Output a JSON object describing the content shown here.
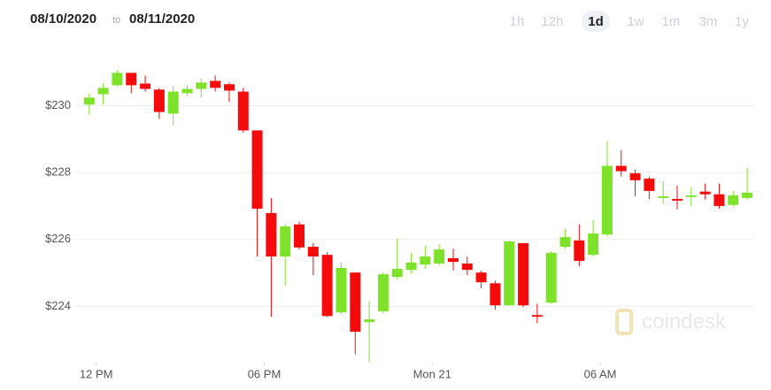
{
  "chart_data": {
    "type": "candlestick",
    "date_from": "08/10/2020",
    "date_separator": "to",
    "date_to": "08/11/2020",
    "range_options": [
      "1h",
      "12h",
      "1d",
      "1w",
      "1m",
      "3m",
      "1y"
    ],
    "selected_range_index": 2,
    "watermark": "coindesk",
    "up_color": "#7ee22b",
    "down_color": "#f40c0c",
    "grid": true,
    "x": [
      -0.25,
      0.25,
      0.75,
      1.25,
      1.75,
      2.25,
      2.75,
      3.25,
      3.75,
      4.25,
      4.75,
      5.25,
      5.75,
      6.25,
      6.75,
      7.25,
      7.75,
      8.25,
      8.75,
      9.25,
      9.75,
      10.25,
      10.75,
      11.25,
      11.75,
      12.25,
      12.75,
      13.25,
      13.75,
      14.25,
      14.75,
      15.25,
      15.75,
      16.25,
      16.75,
      17.25,
      17.75,
      18.25,
      18.75,
      19.25,
      19.75,
      20.25,
      20.75,
      21.25,
      21.75,
      22.25,
      22.75,
      23.25
    ],
    "open": [
      230.03,
      230.34,
      230.61,
      230.98,
      230.66,
      230.48,
      229.76,
      230.37,
      230.5,
      230.74,
      230.64,
      230.42,
      229.26,
      226.79,
      225.49,
      226.45,
      225.78,
      225.54,
      223.82,
      225.01,
      223.53,
      223.85,
      224.88,
      225.09,
      225.25,
      225.28,
      225.44,
      225.28,
      225.01,
      224.69,
      224.03,
      225.89,
      223.74,
      224.11,
      225.78,
      225.97,
      225.54,
      226.15,
      228.2,
      227.98,
      227.82,
      227.24,
      227.21,
      227.27,
      227.43,
      227.35,
      227.03,
      227.24
    ],
    "high": [
      230.37,
      230.66,
      231.06,
      230.98,
      230.9,
      230.53,
      230.58,
      230.61,
      230.82,
      230.9,
      230.69,
      230.53,
      229.26,
      227.24,
      226.45,
      226.53,
      225.89,
      225.62,
      225.31,
      225.01,
      224.16,
      225.01,
      226.02,
      225.6,
      225.81,
      225.86,
      225.73,
      225.49,
      225.07,
      224.77,
      225.97,
      225.89,
      224.08,
      225.65,
      226.31,
      226.45,
      226.58,
      228.94,
      228.67,
      228.09,
      227.88,
      227.74,
      227.61,
      227.56,
      227.67,
      227.67,
      227.45,
      228.14
    ],
    "low": [
      229.73,
      230.03,
      230.58,
      230.37,
      230.42,
      229.6,
      229.42,
      230.27,
      230.24,
      230.42,
      230.11,
      229.2,
      225.49,
      223.69,
      224.62,
      225.7,
      224.93,
      223.69,
      223.76,
      222.57,
      222.33,
      223.79,
      224.8,
      224.99,
      225.12,
      225.23,
      225.07,
      224.93,
      224.54,
      223.9,
      224.03,
      223.98,
      223.5,
      224.08,
      225.73,
      225.2,
      225.49,
      226.1,
      227.88,
      227.29,
      227.21,
      227.06,
      226.9,
      227.0,
      227.19,
      226.92,
      226.98,
      227.19
    ],
    "close": [
      230.24,
      230.53,
      230.98,
      230.61,
      230.5,
      229.81,
      230.42,
      230.5,
      230.69,
      230.53,
      230.45,
      229.26,
      226.92,
      225.49,
      226.39,
      225.76,
      225.49,
      223.71,
      225.15,
      223.24,
      223.61,
      224.96,
      225.12,
      225.31,
      225.49,
      225.7,
      225.33,
      225.09,
      224.72,
      224.03,
      225.94,
      224.03,
      223.69,
      225.6,
      226.07,
      225.36,
      226.18,
      228.2,
      228.04,
      227.77,
      227.45,
      227.29,
      227.16,
      227.32,
      227.35,
      227.0,
      227.32,
      227.4
    ],
    "xlim": [
      -0.75,
      23.5
    ],
    "xticks": [
      {
        "value": 0,
        "label": "12 PM"
      },
      {
        "value": 6,
        "label": "06 PM"
      },
      {
        "value": 12,
        "label": "Mon 21"
      },
      {
        "value": 18,
        "label": "06 AM"
      }
    ],
    "ylim": [
      221.5,
      232.1
    ],
    "yticks": [
      {
        "value": 224,
        "label": "$224"
      },
      {
        "value": 226,
        "label": "$226"
      },
      {
        "value": 228,
        "label": "$228"
      },
      {
        "value": 230,
        "label": "$230"
      }
    ]
  }
}
